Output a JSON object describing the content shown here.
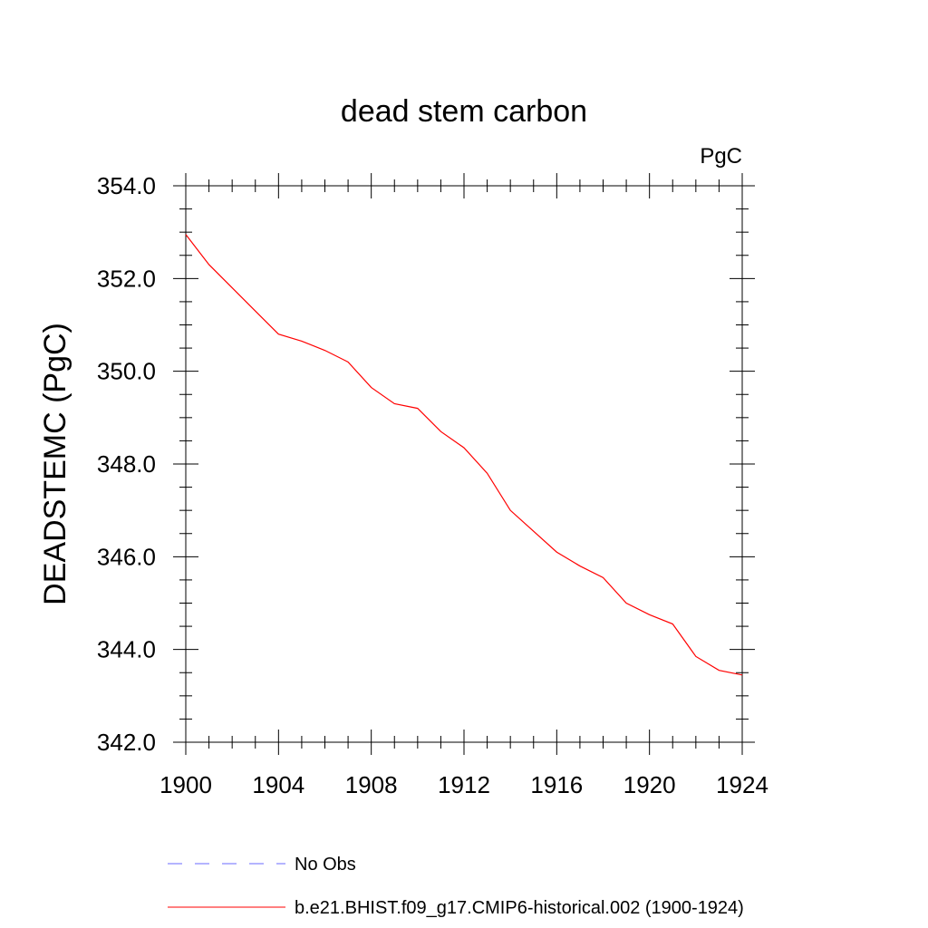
{
  "chart_data": {
    "type": "line",
    "title": "dead stem carbon",
    "units_label": "PgC",
    "ylabel": "DEADSTEMC  (PgC)",
    "xlabel": "",
    "xlim": [
      1900,
      1924
    ],
    "ylim": [
      342.0,
      354.0
    ],
    "x_ticks": [
      "1900",
      "1904",
      "1908",
      "1912",
      "1916",
      "1920",
      "1924"
    ],
    "y_ticks": [
      "342.0",
      "344.0",
      "346.0",
      "348.0",
      "350.0",
      "352.0",
      "354.0"
    ],
    "grid": false,
    "legend_position": "bottom",
    "series": [
      {
        "name": "b.e21.BHIST.f09_g17.CMIP6-historical.002 (1900-1924)",
        "color": "#ff0000",
        "style": "solid",
        "x": [
          1900,
          1901,
          1902,
          1903,
          1904,
          1905,
          1906,
          1907,
          1908,
          1909,
          1910,
          1911,
          1912,
          1913,
          1914,
          1915,
          1916,
          1917,
          1918,
          1919,
          1920,
          1921,
          1922,
          1923,
          1924
        ],
        "values": [
          352.95,
          352.3,
          351.8,
          351.3,
          350.8,
          350.65,
          350.45,
          350.2,
          349.65,
          349.3,
          349.2,
          348.7,
          348.35,
          347.8,
          347.0,
          346.55,
          346.1,
          345.8,
          345.55,
          345.0,
          344.75,
          344.55,
          343.85,
          343.55,
          343.45
        ]
      }
    ],
    "legend": [
      {
        "label": "No Obs",
        "color": "#6a6aff",
        "style": "dashed"
      },
      {
        "label": "b.e21.BHIST.f09_g17.CMIP6-historical.002 (1900-1924)",
        "color": "#ff0000",
        "style": "solid"
      }
    ]
  }
}
